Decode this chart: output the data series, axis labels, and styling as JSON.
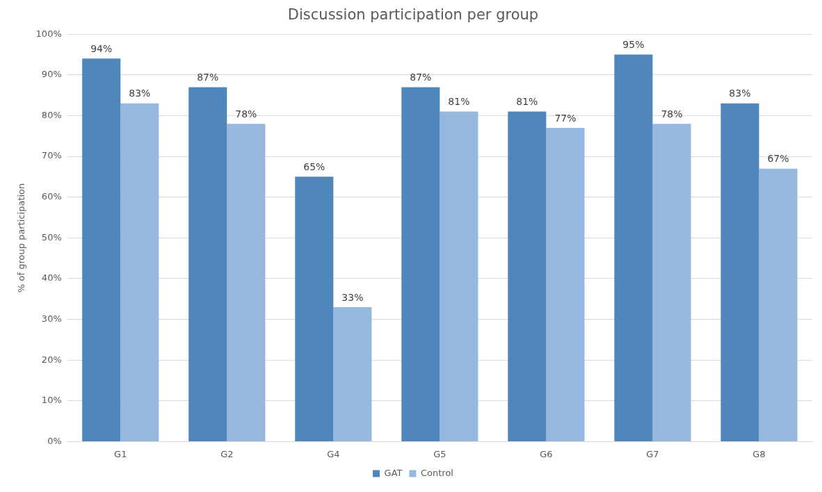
{
  "chart_data": {
    "type": "bar",
    "title": "Discussion participation per group",
    "ylabel": "% of group participation",
    "categories": [
      "G1",
      "G2",
      "G4",
      "G5",
      "G6",
      "G7",
      "G8"
    ],
    "series": [
      {
        "name": "GAT",
        "color": "#4f87bd",
        "values": [
          94,
          87,
          65,
          87,
          81,
          95,
          83
        ],
        "value_labels": [
          "94%",
          "87%",
          "65%",
          "87%",
          "81%",
          "95%",
          "83%"
        ]
      },
      {
        "name": "Control",
        "color": "#97b8de",
        "values": [
          83,
          78,
          33,
          81,
          77,
          78,
          67
        ],
        "value_labels": [
          "83%",
          "78%",
          "33%",
          "81%",
          "77%",
          "78%",
          "67%"
        ]
      }
    ],
    "ylim": [
      0,
      100
    ],
    "yticks": [
      {
        "value": 0,
        "label": "0%"
      },
      {
        "value": 10,
        "label": "10%"
      },
      {
        "value": 20,
        "label": "20%"
      },
      {
        "value": 30,
        "label": "30%"
      },
      {
        "value": 40,
        "label": "40%"
      },
      {
        "value": 50,
        "label": "50%"
      },
      {
        "value": 60,
        "label": "60%"
      },
      {
        "value": 70,
        "label": "70%"
      },
      {
        "value": 80,
        "label": "80%"
      },
      {
        "value": 90,
        "label": "90%"
      },
      {
        "value": 100,
        "label": "100%"
      }
    ],
    "grid": "y",
    "legend": "bottom"
  }
}
